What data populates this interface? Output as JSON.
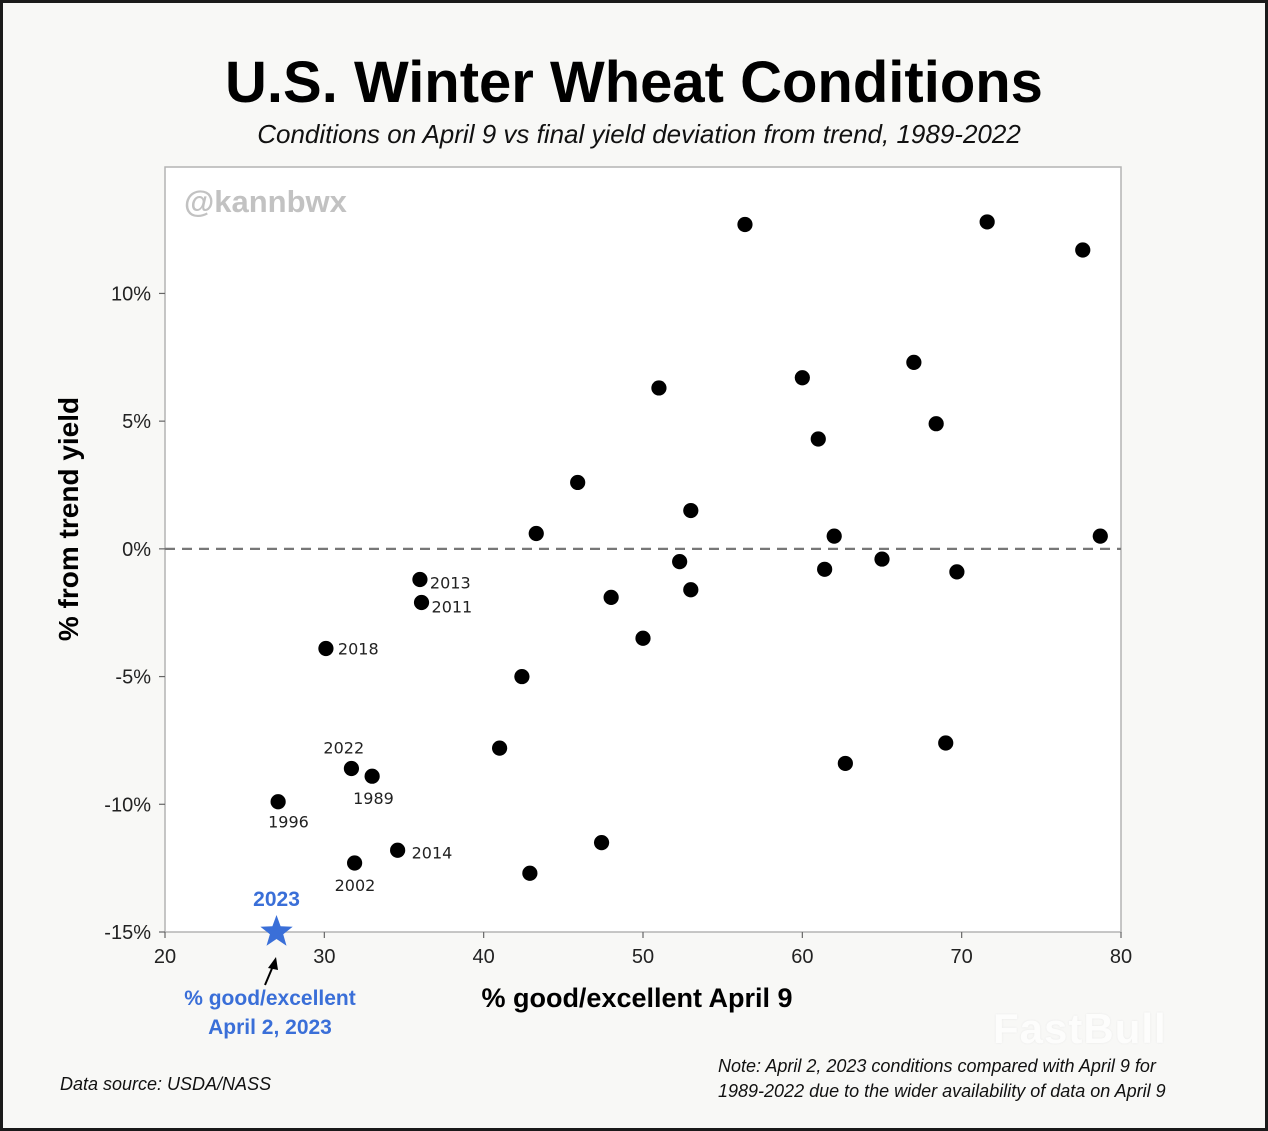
{
  "title": "U.S. Winter Wheat Conditions",
  "subtitle": "Conditions on April 9 vs final yield deviation from trend, 1989-2022",
  "handle": "@kannbwx",
  "source": "Data source: USDA/NASS",
  "note_lines": [
    "Note: April 2, 2023 conditions compared with April 9 for",
    "1989-2022 due to the wider availability of data on April 9"
  ],
  "watermark": "FastBull",
  "colors": {
    "accent": "#3a6fd8",
    "points": "#000000",
    "reference_line": "#777777"
  },
  "chart_data": {
    "type": "scatter",
    "xlabel": "% good/excellent April 9",
    "ylabel": "% from trend yield",
    "xlim": [
      20,
      80
    ],
    "ylim": [
      -15,
      14
    ],
    "xticks": [
      20,
      30,
      40,
      50,
      60,
      70,
      80
    ],
    "yticks": [
      -15,
      -10,
      -5,
      0,
      5,
      10
    ],
    "ytick_labels": [
      "-15%",
      "-10%",
      "-5%",
      "0%",
      "5%",
      "10%"
    ],
    "grid": false,
    "reference_line": {
      "y": 0,
      "style": "dashed"
    },
    "points": [
      {
        "x": 27.1,
        "y": -9.9,
        "label": "1996"
      },
      {
        "x": 30.1,
        "y": -3.9,
        "label": "2018"
      },
      {
        "x": 31.7,
        "y": -8.6,
        "label": "2022"
      },
      {
        "x": 31.9,
        "y": -12.3,
        "label": "2002"
      },
      {
        "x": 33.0,
        "y": -8.9,
        "label": "1989"
      },
      {
        "x": 34.6,
        "y": -11.8,
        "label": "2014"
      },
      {
        "x": 36.0,
        "y": -1.2,
        "label": "2013"
      },
      {
        "x": 36.1,
        "y": -2.1,
        "label": "2011"
      },
      {
        "x": 41.0,
        "y": -7.8
      },
      {
        "x": 42.4,
        "y": -5.0
      },
      {
        "x": 42.9,
        "y": -12.7
      },
      {
        "x": 43.3,
        "y": 0.6
      },
      {
        "x": 45.9,
        "y": 2.6
      },
      {
        "x": 47.4,
        "y": -11.5
      },
      {
        "x": 48.0,
        "y": -1.9
      },
      {
        "x": 50.0,
        "y": -3.5
      },
      {
        "x": 51.0,
        "y": 6.3
      },
      {
        "x": 52.3,
        "y": -0.5
      },
      {
        "x": 53.0,
        "y": 1.5
      },
      {
        "x": 53.0,
        "y": -1.6
      },
      {
        "x": 56.4,
        "y": 12.7
      },
      {
        "x": 60.0,
        "y": 6.7
      },
      {
        "x": 61.0,
        "y": 4.3
      },
      {
        "x": 61.4,
        "y": -0.8
      },
      {
        "x": 62.0,
        "y": 0.5
      },
      {
        "x": 62.7,
        "y": -8.4
      },
      {
        "x": 65.0,
        "y": -0.4
      },
      {
        "x": 67.0,
        "y": 7.3
      },
      {
        "x": 68.4,
        "y": 4.9
      },
      {
        "x": 69.0,
        "y": -7.6
      },
      {
        "x": 69.7,
        "y": -0.9
      },
      {
        "x": 71.6,
        "y": 12.8
      },
      {
        "x": 77.6,
        "y": 11.7
      },
      {
        "x": 78.7,
        "y": 0.5
      }
    ],
    "highlight": {
      "x": 27.0,
      "y": -15,
      "label": "2023",
      "caption_lines": [
        "% good/excellent",
        "April 2, 2023"
      ],
      "color": "#3a6fd8"
    }
  }
}
